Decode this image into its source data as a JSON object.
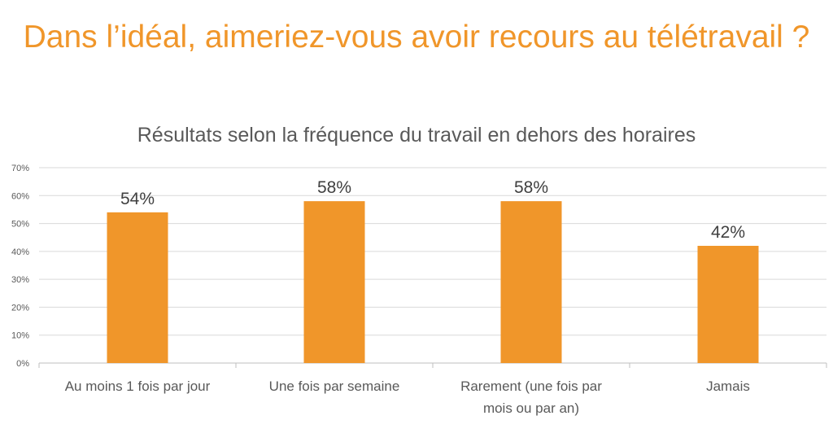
{
  "chart_data": {
    "type": "bar",
    "title": "Dans l’idéal, aimeriez-vous avoir recours au télétravail ?",
    "subtitle": "Résultats selon la fréquence du travail en dehors des horaires",
    "categories": [
      "Au moins 1 fois par jour",
      "Une fois par semaine",
      "Rarement (une fois par mois ou par an)",
      "Jamais"
    ],
    "category_lines": [
      [
        "Au moins 1 fois par jour"
      ],
      [
        "Une fois par semaine"
      ],
      [
        "Rarement (une fois par",
        "mois ou par an)"
      ],
      [
        "Jamais"
      ]
    ],
    "values": [
      54,
      58,
      58,
      42
    ],
    "data_labels": [
      "54%",
      "58%",
      "58%",
      "42%"
    ],
    "yticks": [
      "0%",
      "10%",
      "20%",
      "30%",
      "40%",
      "50%",
      "60%",
      "70%"
    ],
    "ylim": [
      0,
      70
    ],
    "grid": true,
    "colors": {
      "bar": "#F0962A",
      "title": "#F0962A",
      "text": "#595959",
      "grid": "#D9D9D9"
    }
  }
}
